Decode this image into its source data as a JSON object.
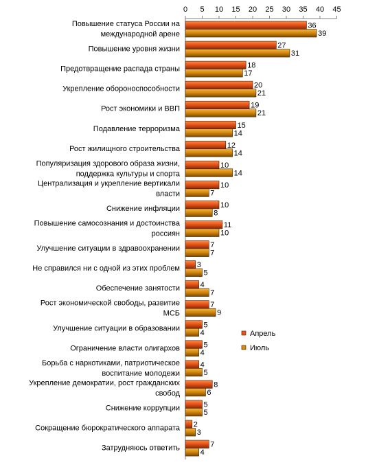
{
  "chart_data": {
    "type": "bar",
    "orientation": "horizontal",
    "categories": [
      "Повышение статуса России на|международной арене",
      "Повышение уровня жизни",
      "Предотвращение распада страны",
      "Укрепление обороноспособности",
      "Рост экономики и ВВП",
      "Подавление терроризма",
      "Рост жилищного строительства",
      "Популяризация здорового образа жизни,|поддержка культуры и спорта",
      "Централизация и укрепление вертикали|власти",
      "Снижение инфляции",
      "Повышение самосознания и достоинства|россиян",
      "Улучшение ситуации в здравоохранении",
      "Не справился ни с одной из этих проблем",
      "Обеспечение занятости",
      "Рост экономической свободы, развитие|МСБ",
      "Улучшение ситуации в образовании",
      "Ограничение власти олигархов",
      "Борьба с наркотиками, патриотическое|воспитание молодежи",
      "Укрепление демократии, рост гражданских|свобод",
      "Снижение коррупции",
      "Сокращение бюрократического аппарата",
      "Затрудняюсь ответить"
    ],
    "series": [
      {
        "name": "Апрель",
        "color": "#e8541a",
        "values": [
          36,
          27,
          18,
          20,
          19,
          15,
          12,
          10,
          10,
          10,
          11,
          7,
          3,
          4,
          7,
          5,
          5,
          4,
          8,
          5,
          2,
          7
        ]
      },
      {
        "name": "Июль",
        "color": "#d88a0c",
        "values": [
          39,
          31,
          17,
          21,
          21,
          14,
          14,
          14,
          7,
          8,
          10,
          7,
          5,
          7,
          9,
          4,
          4,
          5,
          6,
          5,
          3,
          4
        ]
      }
    ],
    "xlim": [
      0,
      45
    ],
    "xticks": [
      "0",
      "5",
      "10",
      "15",
      "20",
      "25",
      "30",
      "35",
      "40",
      "45"
    ],
    "xaxis_position": "top",
    "grid": false,
    "legend_position": "right",
    "data_labels": true
  }
}
